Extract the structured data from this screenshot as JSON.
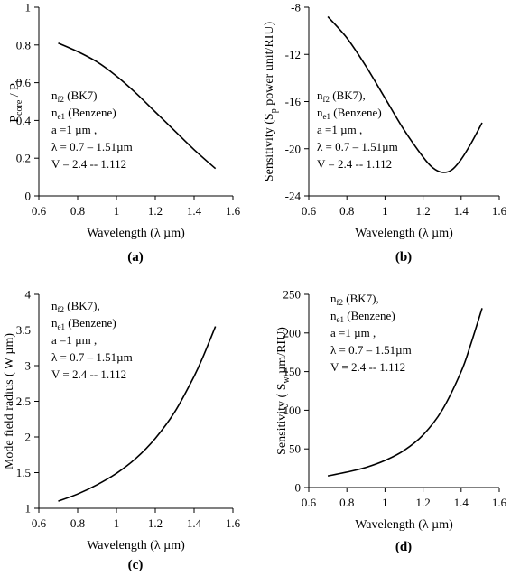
{
  "chart_data": [
    {
      "panel": "(a)",
      "type": "line",
      "xlabel": "Wavelength (λ µm)",
      "ylabel_main": "P",
      "ylabel_sub": "core",
      "ylabel_mid": " / P",
      "ylabel_sub2": "i",
      "xlim": [
        0.6,
        1.6
      ],
      "ylim": [
        0,
        1
      ],
      "xticks": [
        0.6,
        0.8,
        1,
        1.2,
        1.4,
        1.6
      ],
      "xtick_labels": [
        "0.6",
        "0.8",
        "1",
        "1.2",
        "1.4",
        "1.6"
      ],
      "yticks": [
        0,
        0.2,
        0.4,
        0.6,
        0.8,
        1
      ],
      "ytick_labels": [
        "0",
        "0.2",
        "0.4",
        "0.6",
        "0.8",
        "1"
      ],
      "annotations": [
        {
          "main": "n",
          "sub": "f2",
          "rest": " (BK7)"
        },
        {
          "main": "n",
          "sub": "e1",
          "rest": " (Benzene)"
        },
        {
          "main": "a =1 µm  ,",
          "sub": "",
          "rest": ""
        },
        {
          "main": "λ = 0.7 – 1.51µm",
          "sub": "",
          "rest": ""
        },
        {
          "main": "V = 2.4 -- 1.112",
          "sub": "",
          "rest": ""
        }
      ],
      "series": [
        {
          "x": [
            0.7,
            0.8,
            0.9,
            1.0,
            1.1,
            1.2,
            1.3,
            1.4,
            1.51
          ],
          "y": [
            0.81,
            0.765,
            0.71,
            0.635,
            0.545,
            0.445,
            0.345,
            0.245,
            0.145
          ]
        }
      ]
    },
    {
      "panel": "(b)",
      "type": "line",
      "xlabel": "Wavelength (λ  µm)",
      "ylabel_main": "Sensitivity (S",
      "ylabel_sub": "p",
      "ylabel_mid": "  power unit/RIU)",
      "ylabel_sub2": "",
      "xlim": [
        0.6,
        1.6
      ],
      "ylim": [
        -24,
        -8
      ],
      "xticks": [
        0.6,
        0.8,
        1,
        1.2,
        1.4,
        1.6
      ],
      "xtick_labels": [
        "0.6",
        "0.8",
        "1",
        "1.2",
        "1.4",
        "1.6"
      ],
      "yticks": [
        -24,
        -20,
        -16,
        -12,
        -8
      ],
      "ytick_labels": [
        "-24",
        "-20",
        "-16",
        "-12",
        "-8"
      ],
      "annotations": [
        {
          "main": "n",
          "sub": "f2",
          "rest": "  (BK7),"
        },
        {
          "main": "n",
          "sub": "e1",
          "rest": " (Benzene)"
        },
        {
          "main": "a =1 µm  ,",
          "sub": "",
          "rest": ""
        },
        {
          "main": "λ = 0.7 – 1.51µm",
          "sub": "",
          "rest": ""
        },
        {
          "main": "V = 2.4 -- 1.112",
          "sub": "",
          "rest": ""
        }
      ],
      "series": [
        {
          "x": [
            0.7,
            0.8,
            0.9,
            1.0,
            1.1,
            1.2,
            1.25,
            1.3,
            1.35,
            1.4,
            1.45,
            1.51
          ],
          "y": [
            -8.8,
            -10.6,
            -13.0,
            -15.7,
            -18.4,
            -20.7,
            -21.6,
            -22.0,
            -21.8,
            -20.9,
            -19.6,
            -17.8
          ]
        }
      ]
    },
    {
      "panel": "(c)",
      "type": "line",
      "xlabel": "Wavelength (λ  µm)",
      "ylabel_main": "Mode field radius   ( W   µm)",
      "ylabel_sub": "",
      "ylabel_mid": "",
      "ylabel_sub2": "",
      "xlim": [
        0.6,
        1.6
      ],
      "ylim": [
        1,
        4
      ],
      "xticks": [
        0.6,
        0.8,
        1,
        1.2,
        1.4,
        1.6
      ],
      "xtick_labels": [
        "0.6",
        "0.8",
        "1",
        "1.2",
        "1.4",
        "1.6"
      ],
      "yticks": [
        1,
        1.5,
        2,
        2.5,
        3,
        3.5,
        4
      ],
      "ytick_labels": [
        "1",
        "1.5",
        "2",
        "2.5",
        "3",
        "3.5",
        "4"
      ],
      "annotations": [
        {
          "main": "n",
          "sub": "f2",
          "rest": "  (BK7),"
        },
        {
          "main": "n",
          "sub": "e1",
          "rest": " (Benzene)"
        },
        {
          "main": "a =1 µm  ,",
          "sub": "",
          "rest": ""
        },
        {
          "main": "λ = 0.7 – 1.51µm",
          "sub": "",
          "rest": ""
        },
        {
          "main": "V = 2.4 -- 1.112",
          "sub": "",
          "rest": ""
        }
      ],
      "series": [
        {
          "x": [
            0.7,
            0.8,
            0.9,
            1.0,
            1.1,
            1.2,
            1.3,
            1.4,
            1.45,
            1.51
          ],
          "y": [
            1.1,
            1.2,
            1.33,
            1.49,
            1.7,
            1.98,
            2.35,
            2.85,
            3.15,
            3.55
          ]
        }
      ]
    },
    {
      "panel": "(d)",
      "type": "line",
      "xlabel": "Wavelength (λ  µm)",
      "ylabel_main": "Sensitivity  ( S",
      "ylabel_sub": "w",
      "ylabel_mid": "  µm/RIU)",
      "ylabel_sub2": "",
      "xlim": [
        0.6,
        1.6
      ],
      "ylim": [
        0,
        250
      ],
      "xticks": [
        0.6,
        0.8,
        1,
        1.2,
        1.4,
        1.6
      ],
      "xtick_labels": [
        "0.6",
        "0.8",
        "1",
        "1.2",
        "1.4",
        "1.6"
      ],
      "yticks": [
        0,
        50,
        100,
        150,
        200,
        250
      ],
      "ytick_labels": [
        "0",
        "50",
        "100",
        "150",
        "200",
        "250"
      ],
      "annotations": [
        {
          "main": "n",
          "sub": "f2",
          "rest": "  (BK7),"
        },
        {
          "main": "n",
          "sub": "e1",
          "rest": " (Benzene)"
        },
        {
          "main": "a =1 µm  ,",
          "sub": "",
          "rest": ""
        },
        {
          "main": "λ = 0.7 – 1.51µm",
          "sub": "",
          "rest": ""
        },
        {
          "main": "V = 2.4 -- 1.112",
          "sub": "",
          "rest": ""
        }
      ],
      "series": [
        {
          "x": [
            0.7,
            0.8,
            0.9,
            1.0,
            1.1,
            1.2,
            1.3,
            1.4,
            1.45,
            1.51
          ],
          "y": [
            15,
            20,
            26,
            35,
            48,
            68,
            100,
            150,
            185,
            232
          ]
        }
      ]
    }
  ]
}
